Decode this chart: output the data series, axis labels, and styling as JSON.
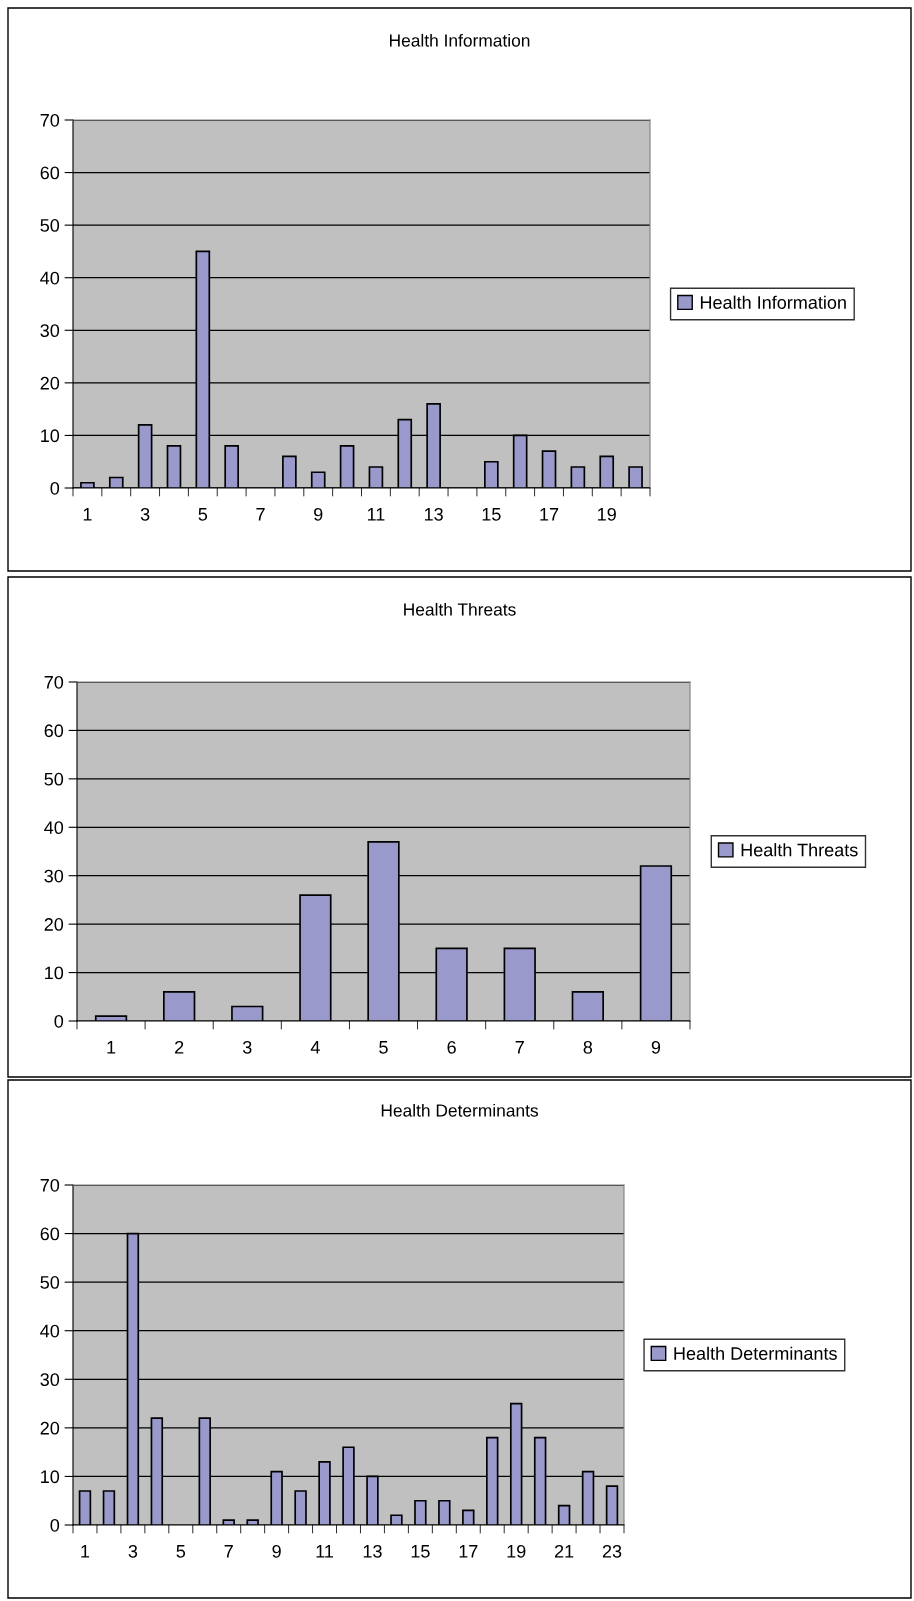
{
  "chart_data": [
    {
      "type": "bar",
      "title": "Health Information",
      "categories": [
        "1",
        null,
        "3",
        null,
        "5",
        null,
        "7",
        null,
        "9",
        null,
        "11",
        null,
        "13",
        null,
        "15",
        null,
        "17",
        null,
        "19",
        null
      ],
      "series": [
        {
          "name": "Health Information",
          "color": "#9999cc",
          "values": [
            1,
            2,
            12,
            8,
            45,
            8,
            null,
            6,
            3,
            8,
            4,
            13,
            16,
            null,
            5,
            10,
            7,
            4,
            6,
            4
          ]
        }
      ],
      "ylim": [
        0,
        70
      ],
      "yticks": [
        0,
        10,
        20,
        30,
        40,
        50,
        60,
        70
      ],
      "grid": "y",
      "legend": "right"
    },
    {
      "type": "bar",
      "title": "Health Threats",
      "categories": [
        "1",
        "2",
        "3",
        "4",
        "5",
        "6",
        "7",
        "8",
        "9"
      ],
      "series": [
        {
          "name": "Health Threats",
          "color": "#9999cc",
          "values": [
            1,
            6,
            3,
            26,
            37,
            15,
            15,
            6,
            32
          ]
        }
      ],
      "ylim": [
        0,
        70
      ],
      "yticks": [
        0,
        10,
        20,
        30,
        40,
        50,
        60,
        70
      ],
      "grid": "y",
      "legend": "right"
    },
    {
      "type": "bar",
      "title": "Health Determinants",
      "categories": [
        "1",
        null,
        "3",
        null,
        "5",
        null,
        "7",
        null,
        "9",
        null,
        "11",
        null,
        "13",
        null,
        "15",
        null,
        "17",
        null,
        "19",
        null,
        "21",
        null,
        "23"
      ],
      "series": [
        {
          "name": "Health Determinants",
          "color": "#9999cc",
          "values": [
            7,
            7,
            60,
            22,
            null,
            22,
            1,
            1,
            11,
            7,
            13,
            16,
            10,
            2,
            5,
            5,
            3,
            18,
            25,
            18,
            4,
            11,
            8
          ]
        }
      ],
      "ylim": [
        0,
        70
      ],
      "yticks": [
        0,
        10,
        20,
        30,
        40,
        50,
        60,
        70
      ],
      "grid": "y",
      "legend": "right"
    }
  ]
}
